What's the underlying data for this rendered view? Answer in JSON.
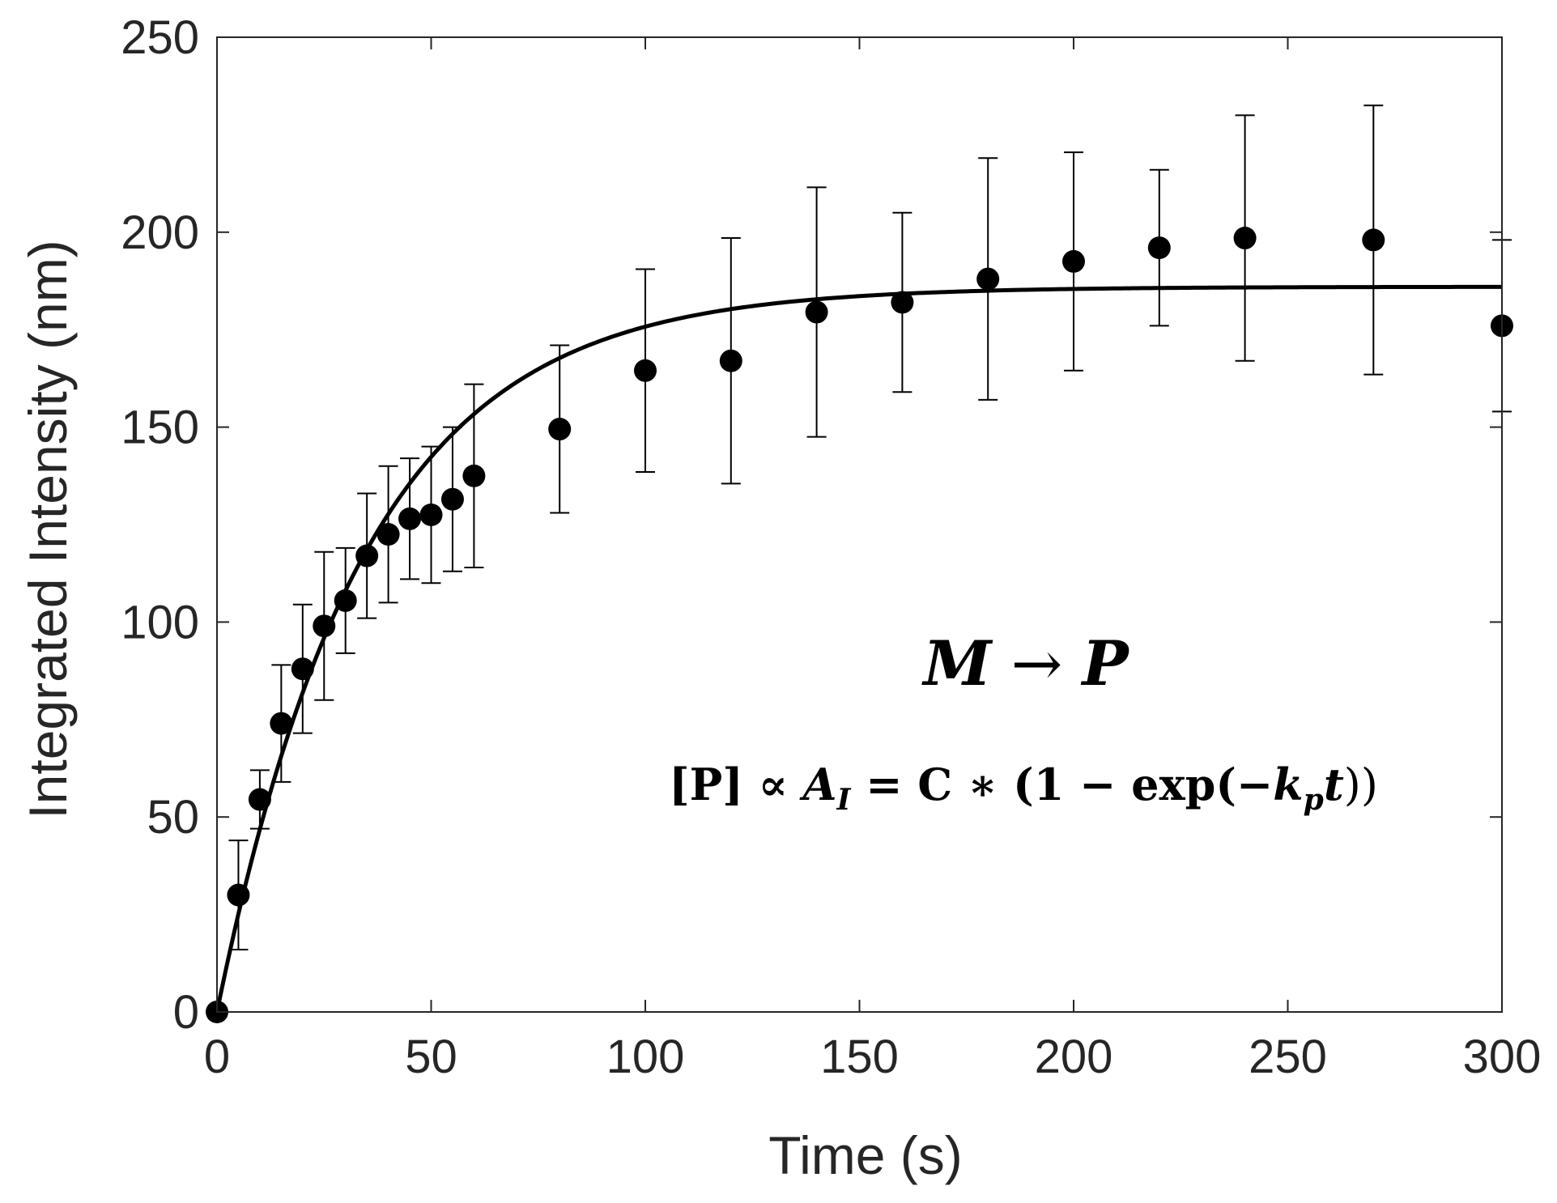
{
  "chart_data": {
    "type": "scatter",
    "title": "",
    "xlabel": "Time (s)",
    "ylabel": "Integrated Intensity (nm)",
    "xlim": [
      0,
      300
    ],
    "ylim": [
      0,
      250
    ],
    "x_ticks": [
      0,
      50,
      100,
      150,
      200,
      250,
      300
    ],
    "y_ticks": [
      0,
      50,
      100,
      150,
      200,
      250
    ],
    "x_tick_labels": [
      "0",
      "50",
      "100",
      "150",
      "200",
      "250",
      "300"
    ],
    "y_tick_labels": [
      "0",
      "50",
      "100",
      "150",
      "200",
      "250"
    ],
    "grid": false,
    "series": [
      {
        "name": "data",
        "style": "markers-with-errorbars",
        "points": [
          {
            "x": 0,
            "y": 0,
            "err": 0
          },
          {
            "x": 5,
            "y": 30,
            "err": 14
          },
          {
            "x": 10,
            "y": 54.5,
            "err": 7.5
          },
          {
            "x": 15,
            "y": 74,
            "err": 15
          },
          {
            "x": 20,
            "y": 88,
            "err": 16.5
          },
          {
            "x": 25,
            "y": 99,
            "err": 19
          },
          {
            "x": 30,
            "y": 105.5,
            "err": 13.5
          },
          {
            "x": 35,
            "y": 117,
            "err": 16
          },
          {
            "x": 40,
            "y": 122.5,
            "err": 17.5
          },
          {
            "x": 45,
            "y": 126.5,
            "err": 15.5
          },
          {
            "x": 50,
            "y": 127.5,
            "err": 17.5
          },
          {
            "x": 55,
            "y": 131.5,
            "err": 18.5
          },
          {
            "x": 60,
            "y": 137.5,
            "err": 23.5
          },
          {
            "x": 80,
            "y": 149.5,
            "err": 21.5
          },
          {
            "x": 100,
            "y": 164.5,
            "err": 26
          },
          {
            "x": 120,
            "y": 167,
            "err": 31.5
          },
          {
            "x": 140,
            "y": 179.5,
            "err": 32
          },
          {
            "x": 160,
            "y": 182,
            "err": 23
          },
          {
            "x": 180,
            "y": 188,
            "err": 31
          },
          {
            "x": 200,
            "y": 192.5,
            "err": 28
          },
          {
            "x": 220,
            "y": 196,
            "err": 20
          },
          {
            "x": 240,
            "y": 198.5,
            "err": 31.5
          },
          {
            "x": 270,
            "y": 198,
            "err": 34.5
          },
          {
            "x": 300,
            "y": 176,
            "err": 22
          }
        ]
      },
      {
        "name": "fit",
        "style": "line",
        "model": "C*(1-exp(-k_p*t))",
        "C": 186,
        "k_p": 0.029
      }
    ],
    "annotations": [
      {
        "text": "M → P",
        "location": "right-center"
      },
      {
        "text": "[P] ∝ A_I = C ∗ (1 − exp(−k_p t))",
        "location": "right-center-below"
      }
    ]
  },
  "annotation_text": {
    "reaction": {
      "m": "M",
      "arrow": " → ",
      "p": "P"
    },
    "equation": {
      "lhs": "[P] ∝ ",
      "a": "A",
      "a_sub": "I",
      "mid": " = C ∗ (1 − exp(−",
      "k": "k",
      "k_sub": "p",
      "t": "t",
      "rhs": "))"
    }
  },
  "colors": {
    "marker": "#000000",
    "line": "#000000",
    "axis": "#262626",
    "background": "#ffffff"
  }
}
